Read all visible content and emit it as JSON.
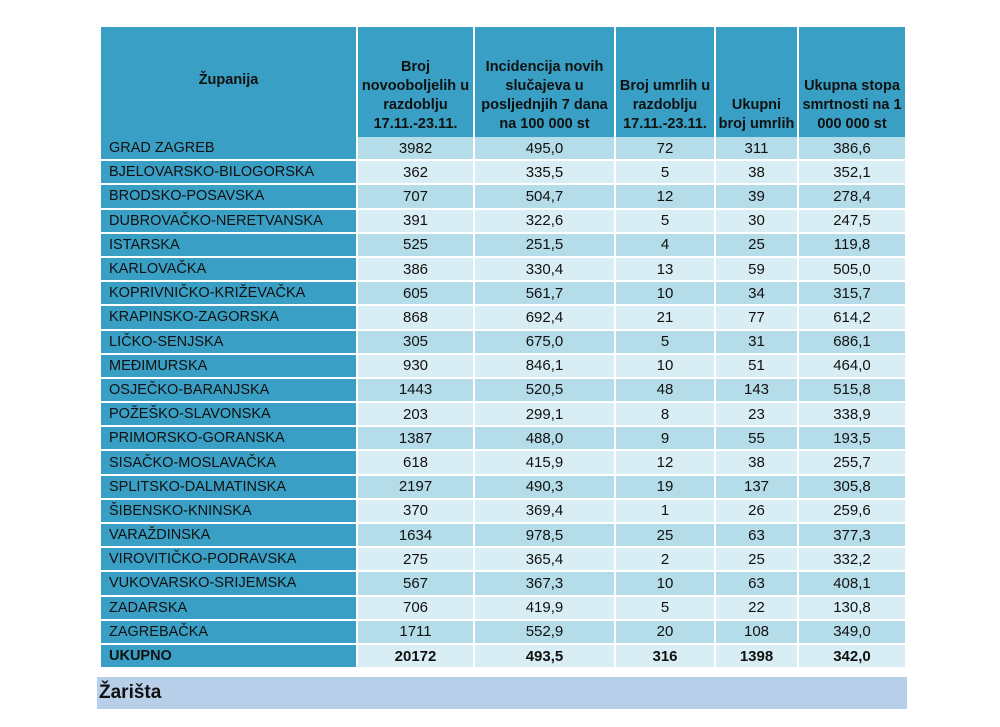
{
  "headers": {
    "county": "Županija",
    "new_cases": "Broj novooboljelih u razdoblju 17.11.-23.11.",
    "incidence": "Incidencija novih slučajeva u posljednjih 7 dana na 100 000 st",
    "deaths_period": "Broj umrlih u razdoblju 17.11.-23.11.",
    "deaths_total": "Ukupni broj umrlih",
    "mortality": "Ukupna stopa smrtnosti na 1 000 000 st"
  },
  "rows": [
    {
      "name": "GRAD ZAGREB",
      "cells": [
        "3982",
        "495,0",
        "72",
        "311",
        "386,6"
      ]
    },
    {
      "name": "BJELOVARSKO-BILOGORSKA",
      "cells": [
        "362",
        "335,5",
        "5",
        "38",
        "352,1"
      ]
    },
    {
      "name": "BRODSKO-POSAVSKA",
      "cells": [
        "707",
        "504,7",
        "12",
        "39",
        "278,4"
      ]
    },
    {
      "name": "DUBROVAČKO-NERETVANSKA",
      "cells": [
        "391",
        "322,6",
        "5",
        "30",
        "247,5"
      ]
    },
    {
      "name": "ISTARSKA",
      "cells": [
        "525",
        "251,5",
        "4",
        "25",
        "119,8"
      ]
    },
    {
      "name": "KARLOVAČKA",
      "cells": [
        "386",
        "330,4",
        "13",
        "59",
        "505,0"
      ]
    },
    {
      "name": "KOPRIVNIČKO-KRIŽEVAČKA",
      "cells": [
        "605",
        "561,7",
        "10",
        "34",
        "315,7"
      ]
    },
    {
      "name": "KRAPINSKO-ZAGORSKA",
      "cells": [
        "868",
        "692,4",
        "21",
        "77",
        "614,2"
      ]
    },
    {
      "name": "LIČKO-SENJSKA",
      "cells": [
        "305",
        "675,0",
        "5",
        "31",
        "686,1"
      ]
    },
    {
      "name": "MEĐIMURSKA",
      "cells": [
        "930",
        "846,1",
        "10",
        "51",
        "464,0"
      ]
    },
    {
      "name": "OSJEČKO-BARANJSKA",
      "cells": [
        "1443",
        "520,5",
        "48",
        "143",
        "515,8"
      ]
    },
    {
      "name": "POŽEŠKO-SLAVONSKA",
      "cells": [
        "203",
        "299,1",
        "8",
        "23",
        "338,9"
      ]
    },
    {
      "name": "PRIMORSKO-GORANSKA",
      "cells": [
        "1387",
        "488,0",
        "9",
        "55",
        "193,5"
      ]
    },
    {
      "name": "SISAČKO-MOSLAVAČKA",
      "cells": [
        "618",
        "415,9",
        "12",
        "38",
        "255,7"
      ]
    },
    {
      "name": "SPLITSKO-DALMATINSKA",
      "cells": [
        "2197",
        "490,3",
        "19",
        "137",
        "305,8"
      ]
    },
    {
      "name": "ŠIBENSKO-KNINSKA",
      "cells": [
        "370",
        "369,4",
        "1",
        "26",
        "259,6"
      ]
    },
    {
      "name": "VARAŽDINSKA",
      "cells": [
        "1634",
        "978,5",
        "25",
        "63",
        "377,3"
      ]
    },
    {
      "name": "VIROVITIČKO-PODRAVSKA",
      "cells": [
        "275",
        "365,4",
        "2",
        "25",
        "332,2"
      ]
    },
    {
      "name": "VUKOVARSKO-SRIJEMSKA",
      "cells": [
        "567",
        "367,3",
        "10",
        "63",
        "408,1"
      ]
    },
    {
      "name": "ZADARSKA",
      "cells": [
        "706",
        "419,9",
        "5",
        "22",
        "130,8"
      ]
    },
    {
      "name": "ZAGREBAČKA",
      "cells": [
        "1711",
        "552,9",
        "20",
        "108",
        "349,0"
      ]
    }
  ],
  "total": {
    "name": "UKUPNO",
    "cells": [
      "20172",
      "493,5",
      "316",
      "1398",
      "342,0"
    ]
  },
  "section_heading": "Žarišta",
  "colors": {
    "header_bg": "#3a9fc4",
    "row_dark": "#b4dce9",
    "row_light": "#d9eef4",
    "heading_bg": "#b8cfe9"
  }
}
